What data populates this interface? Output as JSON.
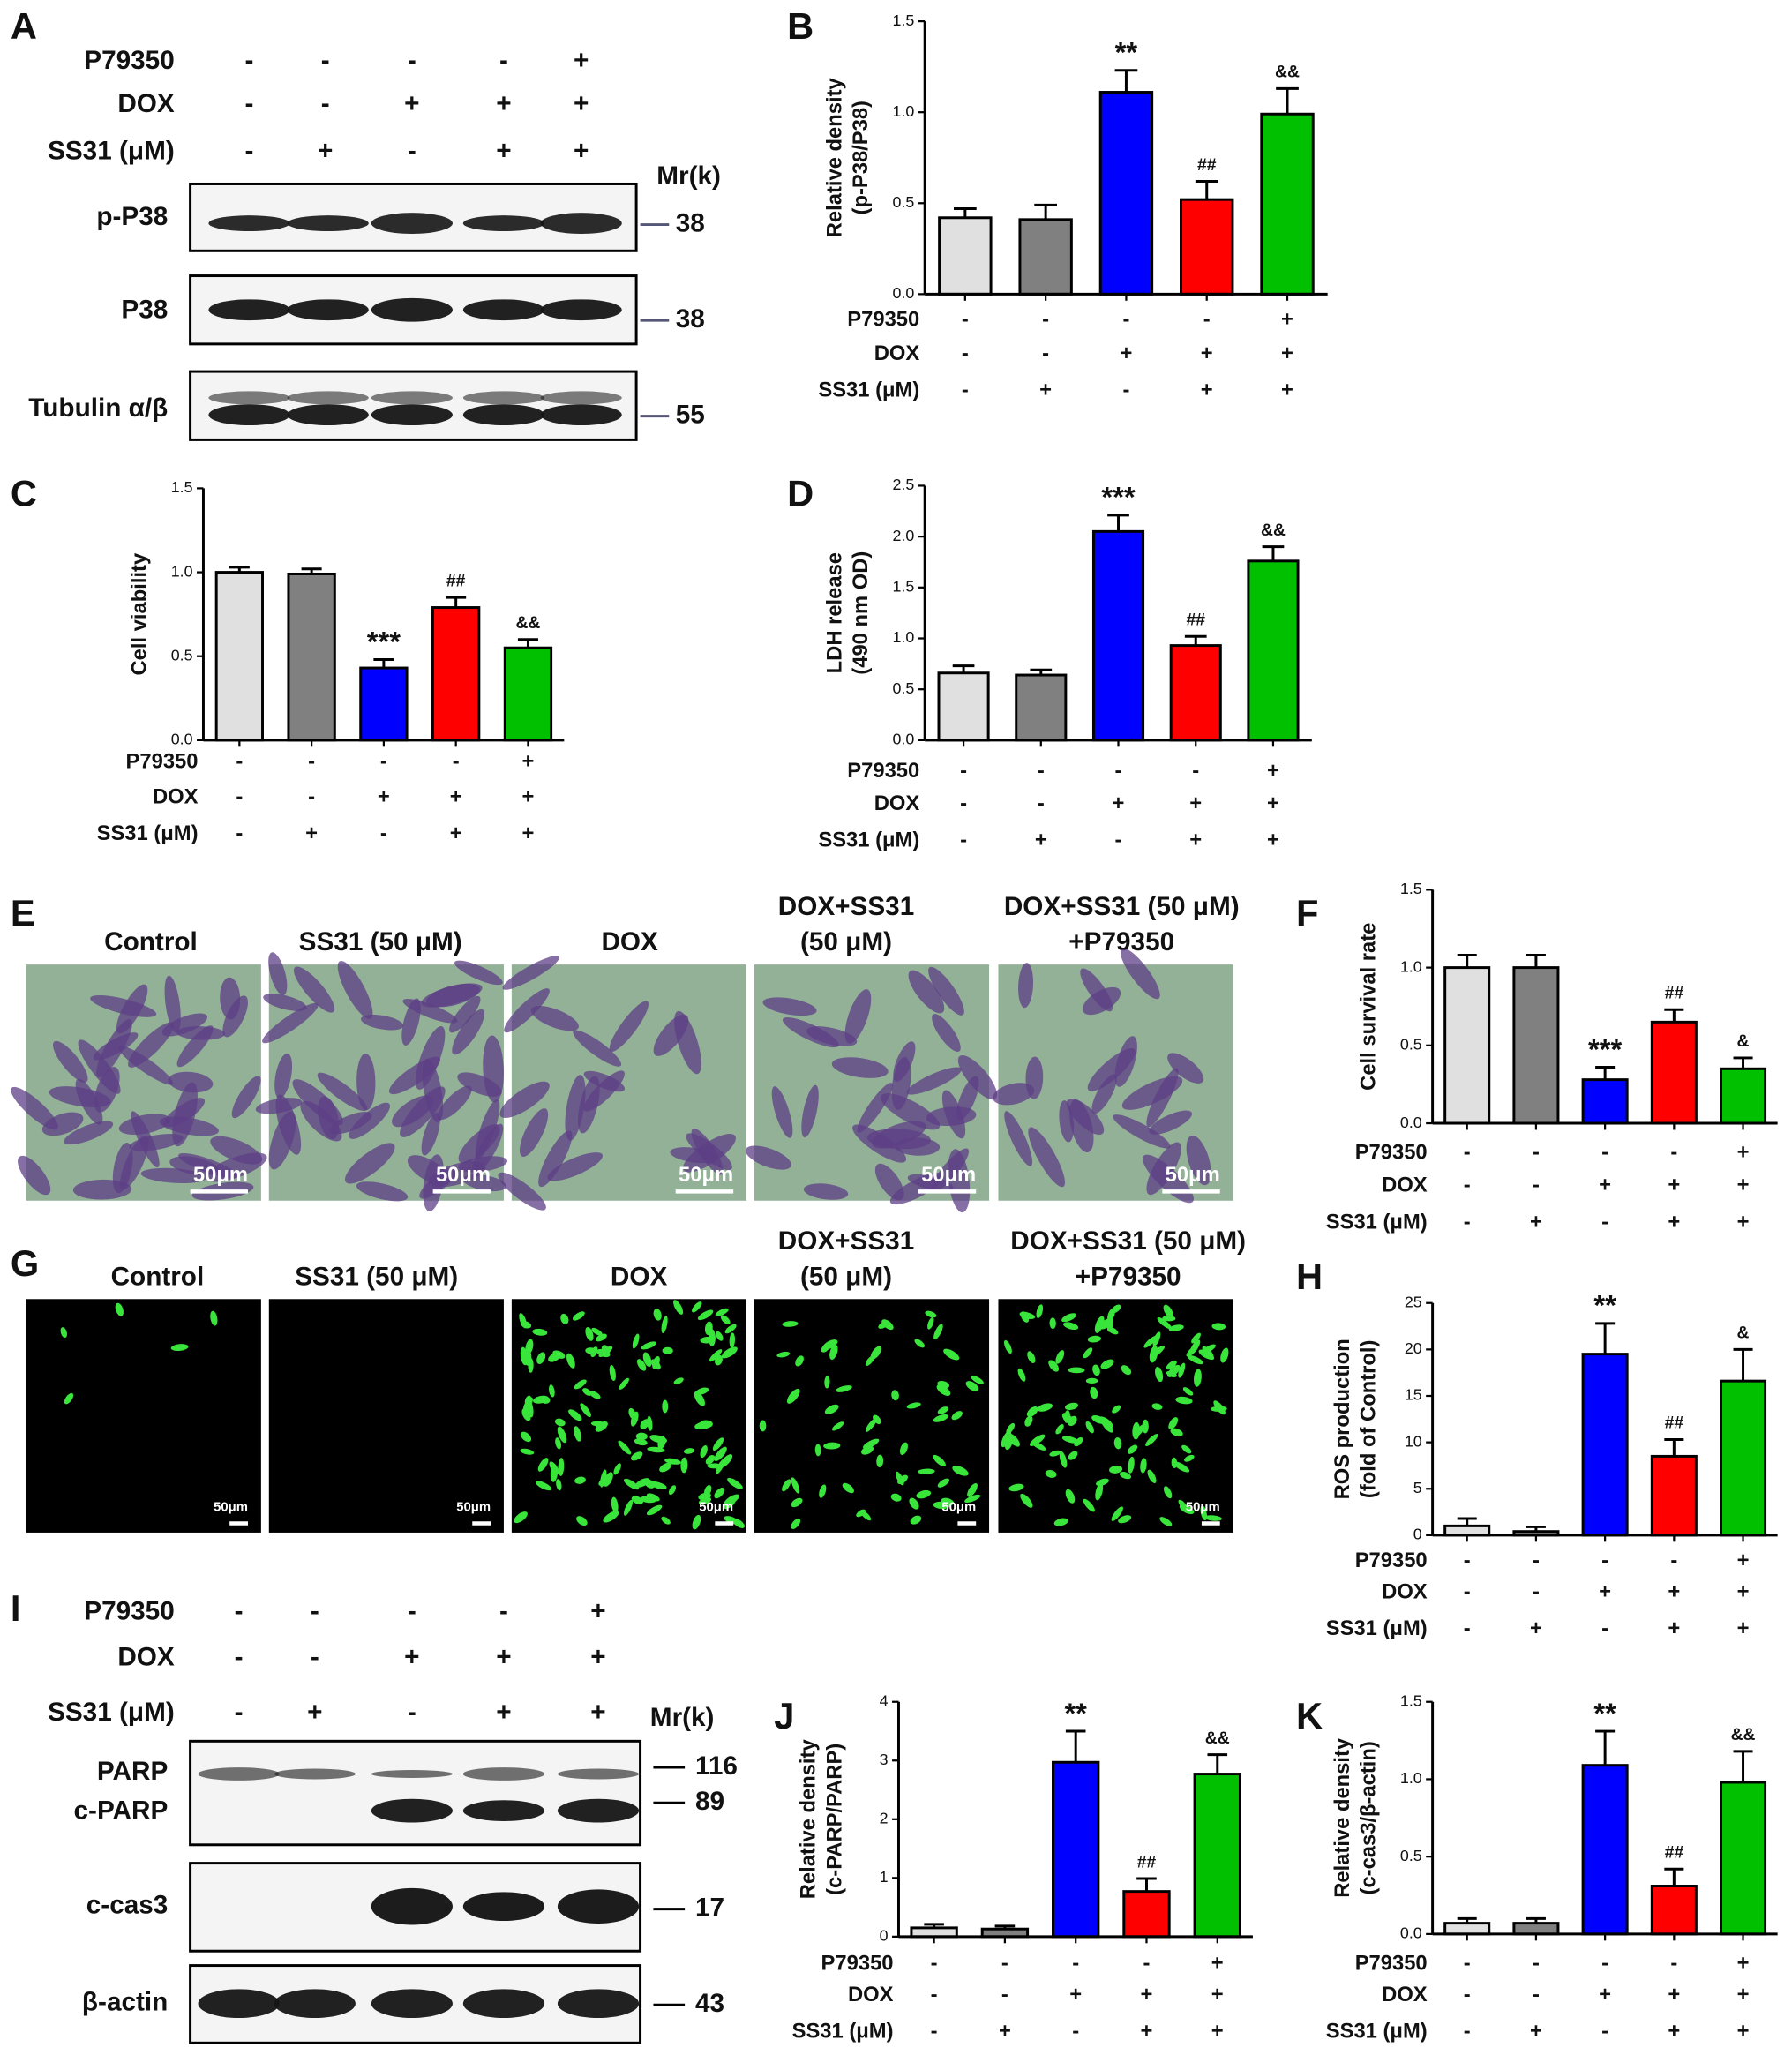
{
  "blot_A": {
    "panel_label": "A",
    "mr_label": "Mr(k)",
    "treatments": [
      {
        "name": "P79350",
        "signs": [
          "-",
          "-",
          "-",
          "-",
          "+"
        ]
      },
      {
        "name": "DOX",
        "signs": [
          "-",
          "-",
          "+",
          "+",
          "+"
        ]
      },
      {
        "name": "SS31 (μM)",
        "signs": [
          "-",
          "+",
          "-",
          "+",
          "+"
        ]
      }
    ],
    "rows": [
      {
        "name": "p-P38",
        "mw": "38"
      },
      {
        "name": "P38",
        "mw": "38"
      },
      {
        "name": "Tubulin α/β",
        "mw": "55"
      }
    ]
  },
  "micrographs_E": {
    "panel_label": "E",
    "scale_bar": "50μm",
    "titles": [
      [
        "Control"
      ],
      [
        "SS31 (50 μM)"
      ],
      [
        "DOX"
      ],
      [
        "DOX+SS31",
        "(50 μM)"
      ],
      [
        "DOX+SS31 (50 μM)",
        "+P79350"
      ]
    ]
  },
  "micrographs_G": {
    "panel_label": "G",
    "scale_bar": "50μm",
    "titles": [
      [
        "Control"
      ],
      [
        "SS31 (50 μM)"
      ],
      [
        "DOX"
      ],
      [
        "DOX+SS31",
        "(50 μM)"
      ],
      [
        "DOX+SS31 (50 μM)",
        "+P79350"
      ]
    ]
  },
  "blot_I": {
    "panel_label": "I",
    "mr_label": "Mr(k)",
    "treatments": [
      {
        "name": "P79350",
        "signs": [
          "-",
          "-",
          "-",
          "-",
          "+"
        ]
      },
      {
        "name": "DOX",
        "signs": [
          "-",
          "-",
          "+",
          "+",
          "+"
        ]
      },
      {
        "name": "SS31 (μM)",
        "signs": [
          "-",
          "+",
          "-",
          "+",
          "+"
        ]
      }
    ],
    "rows": [
      {
        "name": "PARP",
        "mw": "116"
      },
      {
        "name": "c-PARP",
        "mw": "89"
      },
      {
        "name": "c-cas3",
        "mw": "17"
      },
      {
        "name": "β-actin",
        "mw": "43"
      }
    ]
  },
  "chart_data": [
    {
      "type": "bar",
      "panel_label": "B",
      "y_label": [
        "Relative density",
        "(p-P38/P38)"
      ],
      "categories": [
        null,
        null,
        null,
        null,
        null
      ],
      "values": [
        0.42,
        0.41,
        1.11,
        0.52,
        0.99
      ],
      "errors": [
        0.05,
        0.08,
        0.12,
        0.1,
        0.14
      ],
      "annotations": [
        null,
        null,
        "**",
        "##",
        "&&"
      ],
      "colors": [
        "#e0e0e0",
        "#808080",
        "#0000ff",
        "#ff0000",
        "#00c000"
      ],
      "ylim": [
        0,
        1.5
      ],
      "yticks": [
        {
          "value": 0,
          "label": "0.0"
        },
        {
          "value": 0.5,
          "label": "0.5"
        },
        {
          "value": 1,
          "label": "1.0"
        },
        {
          "value": 1.5,
          "label": "1.5"
        }
      ],
      "treatments": [
        {
          "name": "P79350",
          "signs": [
            "-",
            "-",
            "-",
            "-",
            "+"
          ]
        },
        {
          "name": "DOX",
          "signs": [
            "-",
            "-",
            "+",
            "+",
            "+"
          ]
        },
        {
          "name": "SS31 (μM)",
          "signs": [
            "-",
            "+",
            "-",
            "+",
            "+"
          ]
        }
      ]
    },
    {
      "type": "bar",
      "panel_label": "C",
      "y_label": [
        "Cell viability"
      ],
      "categories": [
        null,
        null,
        null,
        null,
        null
      ],
      "values": [
        1.0,
        0.99,
        0.43,
        0.79,
        0.55
      ],
      "errors": [
        0.03,
        0.03,
        0.05,
        0.06,
        0.05
      ],
      "annotations": [
        null,
        null,
        "***",
        "##",
        "&&"
      ],
      "colors": [
        "#e0e0e0",
        "#808080",
        "#0000ff",
        "#ff0000",
        "#00c000"
      ],
      "ylim": [
        0,
        1.5
      ],
      "yticks": [
        {
          "value": 0,
          "label": "0.0"
        },
        {
          "value": 0.5,
          "label": "0.5"
        },
        {
          "value": 1,
          "label": "1.0"
        },
        {
          "value": 1.5,
          "label": "1.5"
        }
      ],
      "treatments": [
        {
          "name": "P79350",
          "signs": [
            "-",
            "-",
            "-",
            "-",
            "+"
          ]
        },
        {
          "name": "DOX",
          "signs": [
            "-",
            "-",
            "+",
            "+",
            "+"
          ]
        },
        {
          "name": "SS31 (μM)",
          "signs": [
            "-",
            "+",
            "-",
            "+",
            "+"
          ]
        }
      ]
    },
    {
      "type": "bar",
      "panel_label": "D",
      "y_label": [
        "LDH release",
        "(490 nm OD)"
      ],
      "categories": [
        null,
        null,
        null,
        null,
        null
      ],
      "values": [
        0.66,
        0.64,
        2.05,
        0.93,
        1.76
      ],
      "errors": [
        0.07,
        0.05,
        0.16,
        0.09,
        0.14
      ],
      "annotations": [
        null,
        null,
        "***",
        "##",
        "&&"
      ],
      "colors": [
        "#e0e0e0",
        "#808080",
        "#0000ff",
        "#ff0000",
        "#00c000"
      ],
      "ylim": [
        0,
        2.5
      ],
      "yticks": [
        {
          "value": 0,
          "label": "0.0"
        },
        {
          "value": 0.5,
          "label": "0.5"
        },
        {
          "value": 1,
          "label": "1.0"
        },
        {
          "value": 1.5,
          "label": "1.5"
        },
        {
          "value": 2,
          "label": "2.0"
        },
        {
          "value": 2.5,
          "label": "2.5"
        }
      ],
      "treatments": [
        {
          "name": "P79350",
          "signs": [
            "-",
            "-",
            "-",
            "-",
            "+"
          ]
        },
        {
          "name": "DOX",
          "signs": [
            "-",
            "-",
            "+",
            "+",
            "+"
          ]
        },
        {
          "name": "SS31 (μM)",
          "signs": [
            "-",
            "+",
            "-",
            "+",
            "+"
          ]
        }
      ]
    },
    {
      "type": "bar",
      "panel_label": "F",
      "y_label": [
        "Cell survival rate"
      ],
      "categories": [
        null,
        null,
        null,
        null,
        null
      ],
      "values": [
        1.0,
        1.0,
        0.28,
        0.65,
        0.35
      ],
      "errors": [
        0.08,
        0.08,
        0.08,
        0.08,
        0.07
      ],
      "annotations": [
        null,
        null,
        "***",
        "##",
        "&"
      ],
      "colors": [
        "#e0e0e0",
        "#808080",
        "#0000ff",
        "#ff0000",
        "#00c000"
      ],
      "ylim": [
        0,
        1.5
      ],
      "yticks": [
        {
          "value": 0,
          "label": "0.0"
        },
        {
          "value": 0.5,
          "label": "0.5"
        },
        {
          "value": 1,
          "label": "1.0"
        },
        {
          "value": 1.5,
          "label": "1.5"
        }
      ],
      "treatments": [
        {
          "name": "P79350",
          "signs": [
            "-",
            "-",
            "-",
            "-",
            "+"
          ]
        },
        {
          "name": "DOX",
          "signs": [
            "-",
            "-",
            "+",
            "+",
            "+"
          ]
        },
        {
          "name": "SS31 (μM)",
          "signs": [
            "-",
            "+",
            "-",
            "+",
            "+"
          ]
        }
      ]
    },
    {
      "type": "bar",
      "panel_label": "H",
      "y_label": [
        "ROS production",
        "(fold of Control)"
      ],
      "categories": [
        null,
        null,
        null,
        null,
        null
      ],
      "values": [
        1.0,
        0.4,
        19.5,
        8.5,
        16.6
      ],
      "errors": [
        0.8,
        0.5,
        3.3,
        1.8,
        3.4
      ],
      "annotations": [
        null,
        null,
        "**",
        "##",
        "&"
      ],
      "colors": [
        "#e0e0e0",
        "#808080",
        "#0000ff",
        "#ff0000",
        "#00c000"
      ],
      "ylim": [
        0,
        25
      ],
      "yticks": [
        0,
        5,
        10,
        15,
        20,
        25
      ],
      "treatments": [
        {
          "name": "P79350",
          "signs": [
            "-",
            "-",
            "-",
            "-",
            "+"
          ]
        },
        {
          "name": "DOX",
          "signs": [
            "-",
            "-",
            "+",
            "+",
            "+"
          ]
        },
        {
          "name": "SS31 (μM)",
          "signs": [
            "-",
            "+",
            "-",
            "+",
            "+"
          ]
        }
      ]
    },
    {
      "type": "bar",
      "panel_label": "J",
      "y_label": [
        "Relative density",
        "(c-PARP/PARP)"
      ],
      "categories": [
        null,
        null,
        null,
        null,
        null
      ],
      "values": [
        0.15,
        0.13,
        2.97,
        0.77,
        2.77
      ],
      "errors": [
        0.06,
        0.05,
        0.53,
        0.22,
        0.33
      ],
      "annotations": [
        null,
        null,
        "**",
        "##",
        "&&"
      ],
      "colors": [
        "#e0e0e0",
        "#808080",
        "#0000ff",
        "#ff0000",
        "#00c000"
      ],
      "ylim": [
        0,
        4
      ],
      "yticks": [
        0,
        1,
        2,
        3,
        4
      ],
      "treatments": [
        {
          "name": "P79350",
          "signs": [
            "-",
            "-",
            "-",
            "-",
            "+"
          ]
        },
        {
          "name": "DOX",
          "signs": [
            "-",
            "-",
            "+",
            "+",
            "+"
          ]
        },
        {
          "name": "SS31 (μM)",
          "signs": [
            "-",
            "+",
            "-",
            "+",
            "+"
          ]
        }
      ]
    },
    {
      "type": "bar",
      "panel_label": "K",
      "y_label": [
        "Relative density",
        "(c-cas3/β-actin)"
      ],
      "categories": [
        null,
        null,
        null,
        null,
        null
      ],
      "values": [
        0.07,
        0.07,
        1.09,
        0.31,
        0.98
      ],
      "errors": [
        0.03,
        0.03,
        0.22,
        0.11,
        0.2
      ],
      "annotations": [
        null,
        null,
        "**",
        "##",
        "&&"
      ],
      "colors": [
        "#e0e0e0",
        "#808080",
        "#0000ff",
        "#ff0000",
        "#00c000"
      ],
      "ylim": [
        0,
        1.5
      ],
      "yticks": [
        {
          "value": 0,
          "label": "0.0"
        },
        {
          "value": 0.5,
          "label": "0.5"
        },
        {
          "value": 1,
          "label": "1.0"
        },
        {
          "value": 1.5,
          "label": "1.5"
        }
      ],
      "treatments": [
        {
          "name": "P79350",
          "signs": [
            "-",
            "-",
            "-",
            "-",
            "+"
          ]
        },
        {
          "name": "DOX",
          "signs": [
            "-",
            "-",
            "+",
            "+",
            "+"
          ]
        },
        {
          "name": "SS31 (μM)",
          "signs": [
            "-",
            "+",
            "-",
            "+",
            "+"
          ]
        }
      ]
    }
  ]
}
